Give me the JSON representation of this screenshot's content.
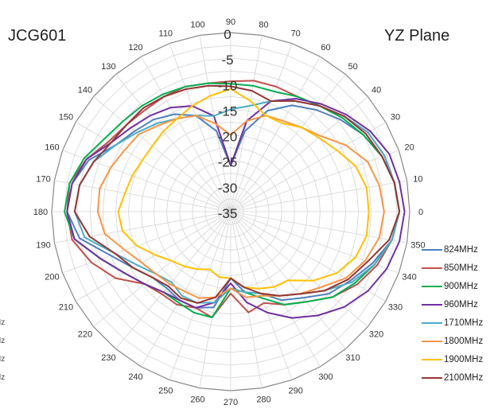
{
  "chart_data": {
    "type": "polar-line",
    "title_left": "JCG601",
    "title_right": "YZ Plane",
    "radial_axis": {
      "ticks": [
        0,
        -5,
        -10,
        -15,
        -20,
        -25,
        -30,
        -35
      ],
      "min": -35,
      "max": 0
    },
    "angular_axis": {
      "ticks": [
        0,
        10,
        20,
        30,
        40,
        50,
        60,
        70,
        80,
        90,
        100,
        110,
        120,
        130,
        140,
        150,
        160,
        170,
        180,
        190,
        200,
        210,
        220,
        230,
        240,
        250,
        260,
        270,
        280,
        290,
        300,
        310,
        320,
        330,
        340,
        350
      ],
      "direction": "counterclockwise",
      "zero": "right"
    },
    "angles": [
      0,
      10,
      20,
      30,
      40,
      50,
      60,
      70,
      80,
      90,
      100,
      110,
      120,
      130,
      140,
      150,
      160,
      170,
      180,
      190,
      200,
      210,
      220,
      230,
      240,
      250,
      260,
      270,
      280,
      290,
      300,
      310,
      320,
      330,
      340,
      350
    ],
    "series": [
      {
        "name": "824MHz",
        "color": "#4f81bd",
        "values": [
          -2,
          -2.5,
          -3.5,
          -5,
          -7,
          -9,
          -11,
          -14,
          -19,
          -26,
          -19,
          -15,
          -13,
          -11.5,
          -10.5,
          -9,
          -5.5,
          -3.5,
          -3,
          -5,
          -10,
          -13,
          -15,
          -15.5,
          -15,
          -15,
          -16,
          -22,
          -19,
          -18,
          -15,
          -13,
          -10,
          -8,
          -5.5,
          -3
        ]
      },
      {
        "name": "850MHz",
        "color": "#c0504d",
        "values": [
          -2,
          -2.5,
          -3,
          -4,
          -6,
          -8,
          -9,
          -9,
          -9,
          -9.5,
          -9.5,
          -9,
          -9,
          -9,
          -8.5,
          -7.5,
          -5,
          -3,
          -3,
          -3.5,
          -6,
          -9,
          -13,
          -14,
          -14,
          -15,
          -14,
          -19,
          -15,
          -16,
          -14,
          -12,
          -9,
          -6.5,
          -4.5,
          -3
        ]
      },
      {
        "name": "900MHz",
        "color": "#00b050",
        "values": [
          -2,
          -2.5,
          -3.5,
          -5,
          -6.5,
          -8,
          -9,
          -10,
          -10,
          -10,
          -9.5,
          -9,
          -8.5,
          -8,
          -7.5,
          -6.5,
          -4.5,
          -3,
          -2.5,
          -4,
          -8,
          -11,
          -13,
          -14.5,
          -14.5,
          -14,
          -14,
          -20,
          -19,
          -17,
          -14,
          -12,
          -9,
          -7,
          -5,
          -3
        ]
      },
      {
        "name": "960MHz",
        "color": "#7030a0",
        "values": [
          -1,
          -1.5,
          -2,
          -3.5,
          -5.5,
          -7.5,
          -9.5,
          -12,
          -17,
          -26,
          -16,
          -13,
          -11.5,
          -10.5,
          -9.5,
          -8,
          -5,
          -3.5,
          -3,
          -4,
          -8,
          -11,
          -13,
          -14.5,
          -15,
          -15,
          -17,
          -21,
          -17,
          -14,
          -11,
          -8.5,
          -6,
          -4,
          -2.5,
          -1.5
        ]
      },
      {
        "name": "1710MHz",
        "color": "#4bacc6",
        "values": [
          -2,
          -2.5,
          -3,
          -4,
          -6,
          -8,
          -10,
          -12,
          -14,
          -15,
          -16,
          -15,
          -14,
          -12.5,
          -11,
          -9,
          -6.5,
          -5,
          -4.5,
          -6,
          -11,
          -14,
          -16,
          -17,
          -16,
          -16,
          -17,
          -20,
          -19,
          -18,
          -16,
          -14,
          -11,
          -7.5,
          -5,
          -3
        ]
      },
      {
        "name": "1800MHz",
        "color": "#f79646",
        "values": [
          -5,
          -5.5,
          -6.5,
          -9,
          -12,
          -13.5,
          -14.5,
          -15,
          -17,
          -20,
          -17.5,
          -15,
          -14,
          -13,
          -11.5,
          -11,
          -10,
          -9,
          -9,
          -10,
          -13,
          -15,
          -16,
          -16.5,
          -17,
          -17,
          -18,
          -20,
          -18,
          -17.5,
          -16,
          -14,
          -12,
          -9,
          -7,
          -5.5
        ]
      },
      {
        "name": "1900MHz",
        "color": "#ffc000",
        "values": [
          -8,
          -8,
          -9,
          -11,
          -12.5,
          -13.5,
          -15,
          -15,
          -13,
          -11,
          -12,
          -13,
          -14,
          -14.5,
          -15,
          -15,
          -14.5,
          -14,
          -13,
          -13.5,
          -15.5,
          -18,
          -20,
          -21,
          -22,
          -23,
          -22,
          -22,
          -20,
          -19,
          -18,
          -17.5,
          -14,
          -11,
          -9,
          -8
        ]
      },
      {
        "name": "2100MHz",
        "color": "#943634",
        "values": [
          -2,
          -2.5,
          -3.5,
          -4.5,
          -6,
          -8,
          -10,
          -12,
          -11,
          -10.5,
          -10,
          -9.5,
          -9,
          -8.5,
          -8.5,
          -8,
          -6.5,
          -5,
          -4.5,
          -7,
          -11,
          -13,
          -15,
          -16,
          -15.5,
          -16,
          -18,
          -22,
          -20,
          -18,
          -16,
          -14,
          -11,
          -8.5,
          -6.5,
          -3.5
        ]
      }
    ],
    "legend_position": "right",
    "grid": true
  },
  "left_clipped_labels": [
    "z",
    "z",
    "z",
    "z",
    "Hz",
    "Hz",
    "Hz",
    "Hz"
  ]
}
